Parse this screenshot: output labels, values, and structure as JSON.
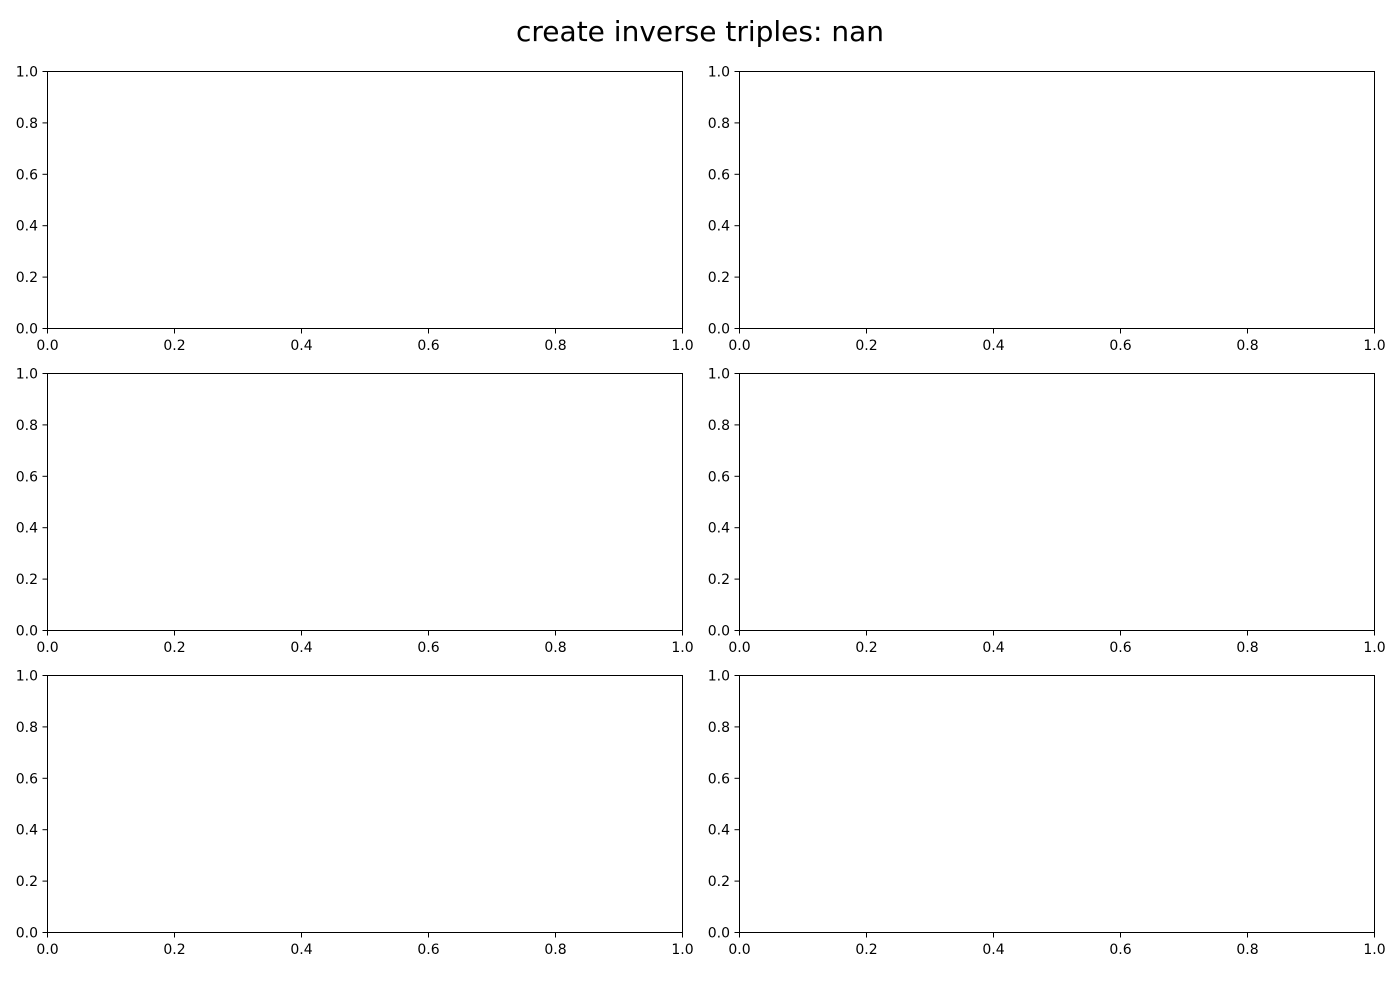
{
  "figure": {
    "title": "create inverse triples: nan"
  },
  "chart_data": [
    {
      "type": "line",
      "xlim": [
        0.0,
        1.0
      ],
      "ylim": [
        0.0,
        1.0
      ],
      "x_ticks": [
        "0.0",
        "0.2",
        "0.4",
        "0.6",
        "0.8",
        "1.0"
      ],
      "y_ticks": [
        "0.0",
        "0.2",
        "0.4",
        "0.6",
        "0.8",
        "1.0"
      ],
      "series": [],
      "grid": false
    },
    {
      "type": "line",
      "xlim": [
        0.0,
        1.0
      ],
      "ylim": [
        0.0,
        1.0
      ],
      "x_ticks": [
        "0.0",
        "0.2",
        "0.4",
        "0.6",
        "0.8",
        "1.0"
      ],
      "y_ticks": [
        "0.0",
        "0.2",
        "0.4",
        "0.6",
        "0.8",
        "1.0"
      ],
      "series": [],
      "grid": false
    },
    {
      "type": "line",
      "xlim": [
        0.0,
        1.0
      ],
      "ylim": [
        0.0,
        1.0
      ],
      "x_ticks": [
        "0.0",
        "0.2",
        "0.4",
        "0.6",
        "0.8",
        "1.0"
      ],
      "y_ticks": [
        "0.0",
        "0.2",
        "0.4",
        "0.6",
        "0.8",
        "1.0"
      ],
      "series": [],
      "grid": false
    },
    {
      "type": "line",
      "xlim": [
        0.0,
        1.0
      ],
      "ylim": [
        0.0,
        1.0
      ],
      "x_ticks": [
        "0.0",
        "0.2",
        "0.4",
        "0.6",
        "0.8",
        "1.0"
      ],
      "y_ticks": [
        "0.0",
        "0.2",
        "0.4",
        "0.6",
        "0.8",
        "1.0"
      ],
      "series": [],
      "grid": false
    },
    {
      "type": "line",
      "xlim": [
        0.0,
        1.0
      ],
      "ylim": [
        0.0,
        1.0
      ],
      "x_ticks": [
        "0.0",
        "0.2",
        "0.4",
        "0.6",
        "0.8",
        "1.0"
      ],
      "y_ticks": [
        "0.0",
        "0.2",
        "0.4",
        "0.6",
        "0.8",
        "1.0"
      ],
      "series": [],
      "grid": false
    },
    {
      "type": "line",
      "xlim": [
        0.0,
        1.0
      ],
      "ylim": [
        0.0,
        1.0
      ],
      "x_ticks": [
        "0.0",
        "0.2",
        "0.4",
        "0.6",
        "0.8",
        "1.0"
      ],
      "y_ticks": [
        "0.0",
        "0.2",
        "0.4",
        "0.6",
        "0.8",
        "1.0"
      ],
      "series": [],
      "grid": false
    }
  ]
}
